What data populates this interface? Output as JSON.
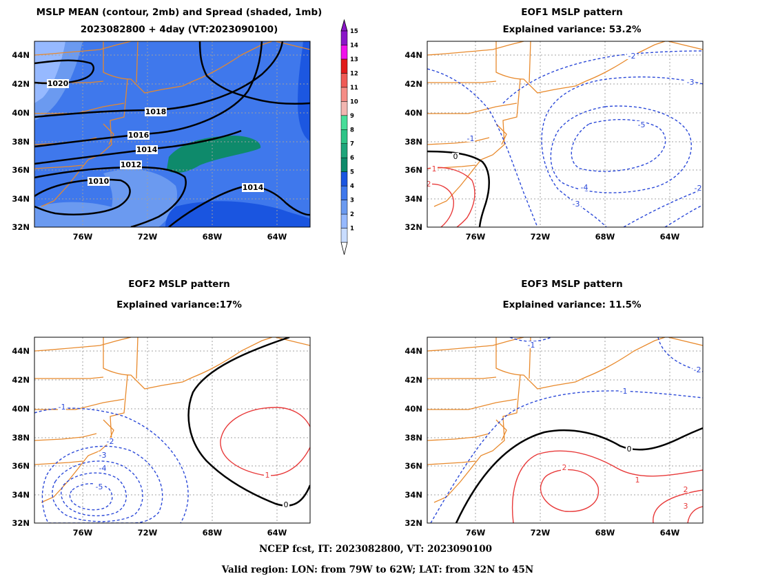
{
  "footer": {
    "line1": "NCEP fcst, IT: 2023082800, VT: 2023090100",
    "line2": "Valid region: LON: from 79W to 62W; LAT: from 32N to 45N"
  },
  "colors": {
    "coast": "#e8892b",
    "positive": "#e83a3a",
    "negative": "#2a48d8",
    "zero": "#000000",
    "grid": "#a0a0a0"
  },
  "colorbar": {
    "levels": [
      1,
      2,
      3,
      4,
      5,
      6,
      7,
      8,
      9,
      10,
      11,
      12,
      13,
      14,
      15
    ],
    "colors": [
      "#c8dcff",
      "#96b9ff",
      "#6b9af0",
      "#3f78ec",
      "#1a55e0",
      "#0e8a6b",
      "#1fa57b",
      "#2fc487",
      "#48dd99",
      "#f2b6b0",
      "#f58d86",
      "#ef5a55",
      "#e11b1b",
      "#f011ea",
      "#8a16c8"
    ]
  },
  "chart_data": [
    {
      "type": "contour",
      "title_line1": "MSLP MEAN (contour, 2mb) and Spread (shaded, 1mb)",
      "title_line2": "2023082800 + 4day (VT:2023090100)",
      "xlabel": "",
      "ylabel": "",
      "xlim": [
        -79,
        -62
      ],
      "ylim": [
        32,
        45
      ],
      "xticks": [
        "76W",
        "72W",
        "68W",
        "64W"
      ],
      "yticks": [
        "32N",
        "34N",
        "36N",
        "38N",
        "40N",
        "42N",
        "44N"
      ],
      "grid": true,
      "shaded": true,
      "contour_labels": [
        {
          "text": "1020",
          "lon": -77.5,
          "lat": 41.6
        },
        {
          "text": "1018",
          "lon": -71.5,
          "lat": 39.9
        },
        {
          "text": "1016",
          "lon": -73.7,
          "lat": 38.4
        },
        {
          "text": "1014",
          "lon": -72.9,
          "lat": 37.3
        },
        {
          "text": "1012",
          "lon": -74.0,
          "lat": 36.3
        },
        {
          "text": "1010",
          "lon": -75.0,
          "lat": 35.2
        },
        {
          "text": "1014",
          "lon": -65.5,
          "lat": 34.8
        }
      ]
    },
    {
      "type": "contour",
      "title_line1": "EOF1 MSLP pattern",
      "title_line2": "Explained variance: 53.2%",
      "xlim": [
        -79,
        -62
      ],
      "ylim": [
        32,
        45
      ],
      "xticks": [
        "76W",
        "72W",
        "68W",
        "64W"
      ],
      "yticks": [
        "32N",
        "34N",
        "36N",
        "38N",
        "40N",
        "42N",
        "44N"
      ],
      "grid": true,
      "contour_labels": [
        {
          "text": "-2",
          "lon": -67.2,
          "lat": 44.0
        },
        {
          "text": "-3",
          "lon": -63.0,
          "lat": 42.0
        },
        {
          "text": "-5",
          "lon": -66.9,
          "lat": 38.9
        },
        {
          "text": "-4",
          "lon": -68.8,
          "lat": 35.6
        },
        {
          "text": "-3",
          "lon": -70.0,
          "lat": 33.5
        },
        {
          "text": "-2",
          "lon": -62.2,
          "lat": 34.8
        },
        {
          "text": "-1",
          "lon": -76.2,
          "lat": 38.2
        },
        {
          "text": "0",
          "lon": -76.2,
          "lat": 37.2
        },
        {
          "text": "1",
          "lon": -78.1,
          "lat": 36.1
        },
        {
          "text": "2",
          "lon": -78.6,
          "lat": 35.0
        }
      ]
    },
    {
      "type": "contour",
      "title_line1": "EOF2 MSLP pattern",
      "title_line2": "Explained variance:17%",
      "xlim": [
        -79,
        -62
      ],
      "ylim": [
        32,
        45
      ],
      "xticks": [
        "76W",
        "72W",
        "68W",
        "64W"
      ],
      "yticks": [
        "32N",
        "34N",
        "36N",
        "38N",
        "40N",
        "42N",
        "44N"
      ],
      "grid": true,
      "contour_labels": [
        {
          "text": "-1",
          "lon": -77.3,
          "lat": 40.0
        },
        {
          "text": "-2",
          "lon": -74.9,
          "lat": 37.9
        },
        {
          "text": "-3",
          "lon": -76.0,
          "lat": 36.6
        },
        {
          "text": "-4",
          "lon": -76.0,
          "lat": 35.6
        },
        {
          "text": "-5",
          "lon": -75.0,
          "lat": 34.2
        },
        {
          "text": "1",
          "lon": -66.0,
          "lat": 35.3
        },
        {
          "text": "0",
          "lon": -64.6,
          "lat": 33.2
        }
      ]
    },
    {
      "type": "contour",
      "title_line1": "EOF3 MSLP pattern",
      "title_line2": "Explained variance: 11.5%",
      "xlim": [
        -79,
        -62
      ],
      "ylim": [
        32,
        45
      ],
      "xticks": [
        "76W",
        "72W",
        "68W",
        "64W"
      ],
      "yticks": [
        "32N",
        "34N",
        "36N",
        "38N",
        "40N",
        "42N",
        "44N"
      ],
      "grid": true,
      "contour_labels": [
        {
          "text": "-1",
          "lon": -73.5,
          "lat": 44.8
        },
        {
          "text": "-1",
          "lon": -67.9,
          "lat": 40.3
        },
        {
          "text": "-2",
          "lon": -62.3,
          "lat": 43.2
        },
        {
          "text": "0",
          "lon": -66.3,
          "lat": 37.2
        },
        {
          "text": "2",
          "lon": -72.0,
          "lat": 35.6
        },
        {
          "text": "1",
          "lon": -67.2,
          "lat": 35.2
        },
        {
          "text": "2",
          "lon": -63.1,
          "lat": 34.2
        },
        {
          "text": "3",
          "lon": -63.1,
          "lat": 33.2
        }
      ]
    }
  ]
}
